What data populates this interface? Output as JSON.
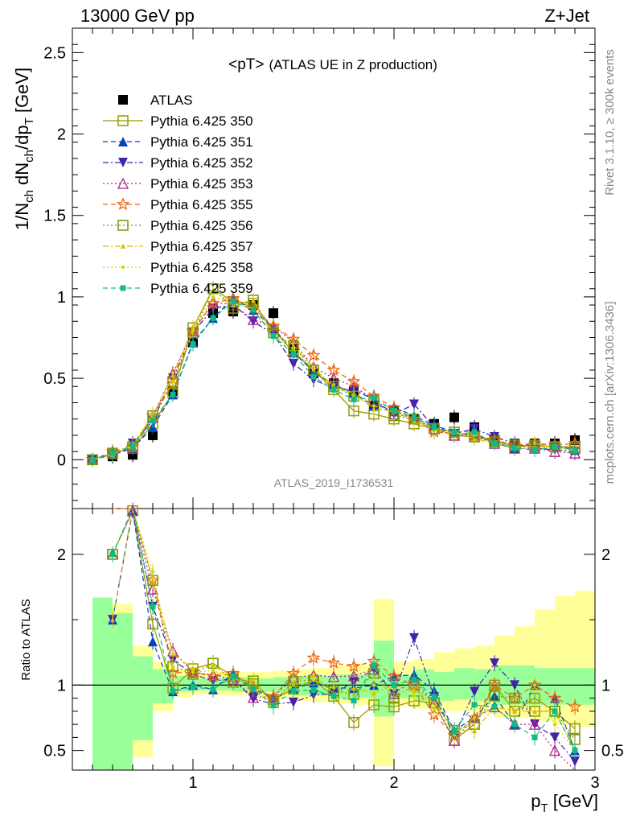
{
  "header": {
    "left": "13000 GeV pp",
    "right": "Z+Jet"
  },
  "side_labels": {
    "rivet": "Rivet 3.1.10, ≥ 300k events",
    "mcplots": "mcplots.cern.ch [arXiv:1306.3436]"
  },
  "analysis_tag": "ATLAS_2019_I1736531",
  "chart_data": [
    {
      "type": "scatter",
      "title_main": "<pT>",
      "title_sub": "(ATLAS UE in Z production)",
      "ylabel": "1/N_ch dN_ch/dp_T [GeV]",
      "xlim": [
        0.4,
        3.0
      ],
      "ylim": [
        -0.3,
        2.65
      ],
      "yticks": [
        0,
        0.5,
        1,
        1.5,
        2,
        2.5
      ],
      "ytick_labels": [
        "0",
        "0.5",
        "1",
        "1.5",
        "2",
        "2.5"
      ],
      "x": [
        0.5,
        0.6,
        0.7,
        0.8,
        0.9,
        1.0,
        1.1,
        1.2,
        1.3,
        1.4,
        1.5,
        1.6,
        1.7,
        1.8,
        1.9,
        2.0,
        2.1,
        2.2,
        2.3,
        2.4,
        2.5,
        2.6,
        2.7,
        2.8,
        2.9
      ],
      "series": [
        {
          "name": "ATLAS",
          "color": "#000000",
          "marker": "square-filled",
          "line": "none",
          "values": [
            0.0,
            0.02,
            0.03,
            0.15,
            0.42,
            0.72,
            0.9,
            0.91,
            0.95,
            0.9,
            0.68,
            0.53,
            0.47,
            0.42,
            0.33,
            0.3,
            0.25,
            0.22,
            0.26,
            0.2,
            0.12,
            0.1,
            0.1,
            0.1,
            0.12
          ]
        },
        {
          "name": "Pythia 6.425 350",
          "color": "#999900",
          "marker": "square-open",
          "line": "solid",
          "values": [
            0.0,
            0.04,
            0.07,
            0.22,
            0.41,
            0.81,
            1.05,
            0.97,
            0.96,
            0.8,
            0.66,
            0.55,
            0.43,
            0.3,
            0.28,
            0.25,
            0.22,
            0.19,
            0.15,
            0.14,
            0.12,
            0.08,
            0.09,
            0.08,
            0.08
          ]
        },
        {
          "name": "Pythia 6.425 351",
          "color": "#0044bb",
          "marker": "triangle-up-filled",
          "line": "dashed",
          "values": [
            0.0,
            0.03,
            0.07,
            0.2,
            0.4,
            0.72,
            0.87,
            0.99,
            0.92,
            0.81,
            0.66,
            0.54,
            0.46,
            0.41,
            0.33,
            0.32,
            0.27,
            0.21,
            0.17,
            0.15,
            0.11,
            0.07,
            0.1,
            0.09,
            0.06
          ]
        },
        {
          "name": "Pythia 6.425 352",
          "color": "#4422aa",
          "marker": "triangle-down-filled",
          "line": "dashdot",
          "values": [
            0.0,
            0.03,
            0.1,
            0.24,
            0.5,
            0.78,
            0.93,
            0.95,
            0.85,
            0.77,
            0.59,
            0.49,
            0.44,
            0.43,
            0.37,
            0.28,
            0.34,
            0.2,
            0.16,
            0.19,
            0.14,
            0.1,
            0.07,
            0.06,
            0.05
          ]
        },
        {
          "name": "Pythia 6.425 353",
          "color": "#aa2288",
          "marker": "triangle-up-open",
          "line": "dotted",
          "values": [
            0.0,
            0.04,
            0.07,
            0.26,
            0.53,
            0.79,
            0.97,
            0.95,
            0.86,
            0.82,
            0.72,
            0.57,
            0.5,
            0.45,
            0.37,
            0.28,
            0.26,
            0.19,
            0.15,
            0.15,
            0.1,
            0.07,
            0.07,
            0.05,
            0.04
          ]
        },
        {
          "name": "Pythia 6.425 355",
          "color": "#ee6611",
          "marker": "star-open",
          "line": "dashed",
          "values": [
            0.0,
            0.05,
            0.08,
            0.27,
            0.46,
            0.79,
            0.96,
            0.99,
            0.93,
            0.82,
            0.74,
            0.64,
            0.55,
            0.48,
            0.39,
            0.32,
            0.25,
            0.17,
            0.16,
            0.15,
            0.12,
            0.09,
            0.1,
            0.09,
            0.1
          ]
        },
        {
          "name": "Pythia 6.425 356",
          "color": "#779900",
          "marker": "square-open",
          "line": "dotted",
          "values": [
            0.0,
            0.04,
            0.08,
            0.27,
            0.48,
            0.78,
            1.05,
            0.93,
            0.98,
            0.78,
            0.7,
            0.55,
            0.45,
            0.39,
            0.36,
            0.27,
            0.25,
            0.19,
            0.17,
            0.14,
            0.11,
            0.09,
            0.08,
            0.08,
            0.07
          ]
        },
        {
          "name": "Pythia 6.425 357",
          "color": "#ddbb00",
          "marker": "tri-small",
          "line": "dashdot",
          "values": [
            0.0,
            0.03,
            0.09,
            0.27,
            0.52,
            0.81,
            1.04,
            0.95,
            0.98,
            0.76,
            0.7,
            0.57,
            0.44,
            0.41,
            0.31,
            0.3,
            0.24,
            0.19,
            0.17,
            0.13,
            0.1,
            0.08,
            0.08,
            0.08,
            0.06
          ]
        },
        {
          "name": "Pythia 6.425 358",
          "color": "#ccdd00",
          "marker": "dot-small",
          "line": "dotted",
          "values": [
            0.0,
            0.04,
            0.09,
            0.28,
            0.48,
            0.79,
            1.0,
            0.96,
            0.93,
            0.75,
            0.68,
            0.55,
            0.46,
            0.39,
            0.33,
            0.29,
            0.23,
            0.18,
            0.16,
            0.15,
            0.1,
            0.07,
            0.1,
            0.07,
            0.06
          ]
        },
        {
          "name": "Pythia 6.425 359",
          "color": "#11bb88",
          "marker": "square-small-filled",
          "line": "dashed",
          "values": [
            0.0,
            0.04,
            0.08,
            0.24,
            0.4,
            0.71,
            0.87,
            0.97,
            0.92,
            0.76,
            0.65,
            0.51,
            0.43,
            0.37,
            0.38,
            0.3,
            0.26,
            0.2,
            0.17,
            0.17,
            0.1,
            0.07,
            0.06,
            0.08,
            0.06
          ]
        }
      ]
    },
    {
      "type": "scatter",
      "ylabel": "Ratio to ATLAS",
      "xlabel": "p_T [GeV]",
      "xlim": [
        0.4,
        3.0
      ],
      "ylim": [
        0.35,
        2.35
      ],
      "yticks": [
        0.5,
        1,
        2
      ],
      "ytick_labels": [
        "0.5",
        "1",
        "2"
      ],
      "xticks": [
        1,
        2,
        3
      ],
      "xtick_labels": [
        "1",
        "2",
        "3"
      ],
      "reference_line": 1,
      "band_x": [
        0.55,
        0.65,
        0.75,
        0.85,
        0.95,
        1.05,
        1.15,
        1.25,
        1.35,
        1.45,
        1.55,
        1.65,
        1.75,
        1.85,
        1.95,
        2.05,
        2.15,
        2.25,
        2.35,
        2.45,
        2.55,
        2.65,
        2.75,
        2.85,
        2.95
      ],
      "band_inner_lo": [
        0.35,
        0.35,
        0.58,
        0.86,
        0.95,
        0.96,
        0.96,
        0.95,
        0.95,
        0.94,
        0.92,
        0.92,
        0.9,
        0.9,
        0.76,
        0.9,
        0.88,
        0.88,
        0.89,
        0.88,
        0.85,
        0.85,
        0.85,
        0.85,
        0.85
      ],
      "band_inner_hi": [
        1.67,
        1.55,
        1.22,
        1.12,
        1.07,
        1.05,
        1.06,
        1.06,
        1.05,
        1.06,
        1.07,
        1.07,
        1.08,
        1.08,
        1.34,
        1.08,
        1.12,
        1.1,
        1.13,
        1.12,
        1.15,
        1.15,
        1.13,
        1.13,
        1.13
      ],
      "band_outer_lo": [
        0.35,
        0.35,
        0.45,
        0.8,
        0.91,
        0.93,
        0.92,
        0.92,
        0.91,
        0.9,
        0.88,
        0.87,
        0.86,
        0.85,
        0.38,
        0.84,
        0.82,
        0.8,
        0.8,
        0.78,
        0.75,
        0.75,
        0.72,
        0.7,
        0.68
      ],
      "band_outer_hi": [
        1.67,
        1.62,
        1.3,
        1.18,
        1.12,
        1.09,
        1.1,
        1.1,
        1.1,
        1.11,
        1.12,
        1.13,
        1.15,
        1.16,
        1.66,
        1.18,
        1.2,
        1.25,
        1.28,
        1.3,
        1.38,
        1.45,
        1.58,
        1.68,
        1.72
      ],
      "colors": {
        "inner_band": "#99ff99",
        "outer_band": "#ffff99"
      }
    }
  ]
}
